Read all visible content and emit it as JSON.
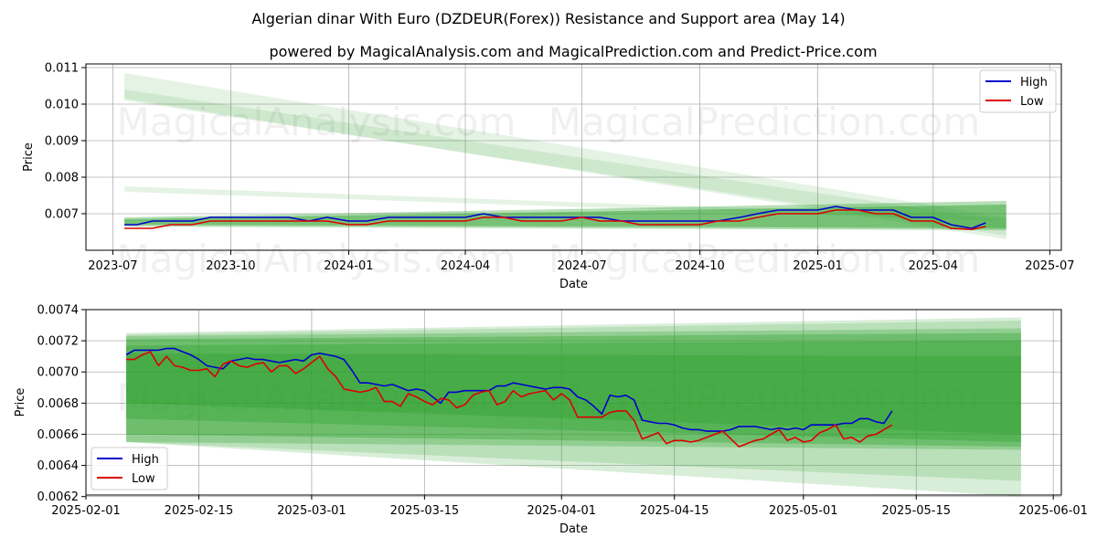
{
  "title": "Algerian dinar With Euro (DZDEUR(Forex)) Resistance and Support area (May 14)",
  "subtitle": "powered by MagicalAnalysis.com and MagicalPrediction.com and Predict-Price.com",
  "watermarks": [
    "MagicalAnalysis.com",
    "MagicalPrediction.com"
  ],
  "colors": {
    "high": "#0000cc",
    "low": "#dd0000",
    "band": "#2ca02c",
    "grid": "#b0b0b0"
  },
  "chart_data": [
    {
      "type": "line",
      "xlabel": "Date",
      "ylabel": "Price",
      "xlim": [
        "2023-06-10",
        "2025-07-10"
      ],
      "ylim": [
        0.006,
        0.0111
      ],
      "x_ticks": [
        "2023-07",
        "2023-10",
        "2024-01",
        "2024-04",
        "2024-07",
        "2024-10",
        "2025-01",
        "2025-04",
        "2025-07"
      ],
      "y_ticks": [
        "0.007",
        "0.008",
        "0.009",
        "0.010",
        "0.011"
      ],
      "grid": true,
      "legend_position": "top-right",
      "series": [
        {
          "name": "High",
          "x": [
            "2023-07-10",
            "2023-07-20",
            "2023-08-01",
            "2023-08-15",
            "2023-09-01",
            "2023-09-15",
            "2023-10-01",
            "2023-10-15",
            "2023-11-01",
            "2023-11-15",
            "2023-12-01",
            "2023-12-15",
            "2024-01-01",
            "2024-01-15",
            "2024-02-01",
            "2024-02-15",
            "2024-03-01",
            "2024-03-15",
            "2024-04-01",
            "2024-04-15",
            "2024-05-01",
            "2024-05-15",
            "2024-06-01",
            "2024-06-15",
            "2024-07-01",
            "2024-07-15",
            "2024-08-01",
            "2024-08-15",
            "2024-09-01",
            "2024-09-15",
            "2024-10-01",
            "2024-10-15",
            "2024-11-01",
            "2024-11-15",
            "2024-12-01",
            "2024-12-15",
            "2025-01-01",
            "2025-01-15",
            "2025-02-01",
            "2025-02-15",
            "2025-03-01",
            "2025-03-15",
            "2025-04-01",
            "2025-04-15",
            "2025-05-01",
            "2025-05-12"
          ],
          "values": [
            0.0067,
            0.0067,
            0.0068,
            0.0068,
            0.0068,
            0.0069,
            0.0069,
            0.0069,
            0.0069,
            0.0069,
            0.0068,
            0.0069,
            0.0068,
            0.0068,
            0.0069,
            0.0069,
            0.0069,
            0.0069,
            0.0069,
            0.007,
            0.0069,
            0.0069,
            0.0069,
            0.0069,
            0.0069,
            0.0069,
            0.0068,
            0.0068,
            0.0068,
            0.0068,
            0.0068,
            0.0068,
            0.0069,
            0.007,
            0.0071,
            0.0071,
            0.0071,
            0.0072,
            0.0071,
            0.0071,
            0.0071,
            0.0069,
            0.0069,
            0.0067,
            0.0066,
            0.00675
          ]
        },
        {
          "name": "Low",
          "x": [
            "2023-07-10",
            "2023-07-20",
            "2023-08-01",
            "2023-08-15",
            "2023-09-01",
            "2023-09-15",
            "2023-10-01",
            "2023-10-15",
            "2023-11-01",
            "2023-11-15",
            "2023-12-01",
            "2023-12-15",
            "2024-01-01",
            "2024-01-15",
            "2024-02-01",
            "2024-02-15",
            "2024-03-01",
            "2024-03-15",
            "2024-04-01",
            "2024-04-15",
            "2024-05-01",
            "2024-05-15",
            "2024-06-01",
            "2024-06-15",
            "2024-07-01",
            "2024-07-15",
            "2024-08-01",
            "2024-08-15",
            "2024-09-01",
            "2024-09-15",
            "2024-10-01",
            "2024-10-15",
            "2024-11-01",
            "2024-11-15",
            "2024-12-01",
            "2024-12-15",
            "2025-01-01",
            "2025-01-15",
            "2025-02-01",
            "2025-02-15",
            "2025-03-01",
            "2025-03-15",
            "2025-04-01",
            "2025-04-15",
            "2025-05-01",
            "2025-05-12"
          ],
          "values": [
            0.0066,
            0.0066,
            0.0066,
            0.0067,
            0.0067,
            0.0068,
            0.0068,
            0.0068,
            0.0068,
            0.0068,
            0.0068,
            0.0068,
            0.0067,
            0.0067,
            0.0068,
            0.0068,
            0.0068,
            0.0068,
            0.0068,
            0.0069,
            0.0069,
            0.0068,
            0.0068,
            0.0068,
            0.0069,
            0.0068,
            0.0068,
            0.0067,
            0.0067,
            0.0067,
            0.0067,
            0.0068,
            0.0068,
            0.0069,
            0.007,
            0.007,
            0.007,
            0.0071,
            0.0071,
            0.007,
            0.007,
            0.0068,
            0.0068,
            0.0066,
            0.00657,
            0.00665
          ]
        }
      ],
      "bands": [
        {
          "x": [
            "2023-07-10",
            "2025-05-28"
          ],
          "upper": [
            0.01085,
            0.0069
          ],
          "lower": [
            0.01015,
            0.0063
          ],
          "opacity": 0.12
        },
        {
          "x": [
            "2023-07-10",
            "2025-05-28"
          ],
          "upper": [
            0.0104,
            0.0068
          ],
          "lower": [
            0.0101,
            0.0064
          ],
          "opacity": 0.12
        },
        {
          "x": [
            "2023-07-10",
            "2025-05-28"
          ],
          "upper": [
            0.00775,
            0.0069
          ],
          "lower": [
            0.0076,
            0.0068
          ],
          "opacity": 0.12
        },
        {
          "x": [
            "2023-07-10",
            "2025-05-28"
          ],
          "upper": [
            0.0069,
            0.00735
          ],
          "lower": [
            0.00665,
            0.00655
          ],
          "opacity": 0.35
        },
        {
          "x": [
            "2023-07-10",
            "2025-05-28"
          ],
          "upper": [
            0.00685,
            0.00725
          ],
          "lower": [
            0.0067,
            0.0066
          ],
          "opacity": 0.45
        }
      ]
    },
    {
      "type": "line",
      "xlabel": "Date",
      "ylabel": "Price",
      "xlim": [
        "2025-02-01",
        "2025-06-02"
      ],
      "ylim": [
        0.00621,
        0.0074
      ],
      "x_ticks": [
        "2025-02-01",
        "2025-02-15",
        "2025-03-01",
        "2025-03-15",
        "2025-04-01",
        "2025-04-15",
        "2025-05-01",
        "2025-05-15",
        "2025-06-01"
      ],
      "y_ticks": [
        "0.0062",
        "0.0064",
        "0.0066",
        "0.0068",
        "0.0070",
        "0.0072",
        "0.0074"
      ],
      "grid": true,
      "legend_position": "bottom-left",
      "series": [
        {
          "name": "High",
          "x": [
            "2025-02-06",
            "2025-02-07",
            "2025-02-08",
            "2025-02-09",
            "2025-02-10",
            "2025-02-11",
            "2025-02-12",
            "2025-02-13",
            "2025-02-14",
            "2025-02-15",
            "2025-02-16",
            "2025-02-17",
            "2025-02-18",
            "2025-02-19",
            "2025-02-20",
            "2025-02-21",
            "2025-02-22",
            "2025-02-23",
            "2025-02-24",
            "2025-02-25",
            "2025-02-26",
            "2025-02-27",
            "2025-02-28",
            "2025-03-01",
            "2025-03-02",
            "2025-03-03",
            "2025-03-04",
            "2025-03-05",
            "2025-03-06",
            "2025-03-07",
            "2025-03-08",
            "2025-03-09",
            "2025-03-10",
            "2025-03-11",
            "2025-03-12",
            "2025-03-13",
            "2025-03-14",
            "2025-03-15",
            "2025-03-16",
            "2025-03-17",
            "2025-03-18",
            "2025-03-19",
            "2025-03-20",
            "2025-03-21",
            "2025-03-22",
            "2025-03-23",
            "2025-03-24",
            "2025-03-25",
            "2025-03-26",
            "2025-03-27",
            "2025-03-28",
            "2025-03-29",
            "2025-03-30",
            "2025-03-31",
            "2025-04-01",
            "2025-04-02",
            "2025-04-03",
            "2025-04-04",
            "2025-04-05",
            "2025-04-06",
            "2025-04-07",
            "2025-04-08",
            "2025-04-09",
            "2025-04-10",
            "2025-04-11",
            "2025-04-12",
            "2025-04-13",
            "2025-04-14",
            "2025-04-15",
            "2025-04-16",
            "2025-04-17",
            "2025-04-18",
            "2025-04-19",
            "2025-04-20",
            "2025-04-21",
            "2025-04-22",
            "2025-04-23",
            "2025-04-24",
            "2025-04-25",
            "2025-04-26",
            "2025-04-27",
            "2025-04-28",
            "2025-04-29",
            "2025-04-30",
            "2025-05-01",
            "2025-05-02",
            "2025-05-03",
            "2025-05-04",
            "2025-05-05",
            "2025-05-06",
            "2025-05-07",
            "2025-05-08",
            "2025-05-09",
            "2025-05-10",
            "2025-05-11",
            "2025-05-12"
          ],
          "values": [
            0.00711,
            0.00714,
            0.00714,
            0.00714,
            0.00714,
            0.00715,
            0.00715,
            0.00713,
            0.00711,
            0.00708,
            0.00704,
            0.00703,
            0.00702,
            0.00707,
            0.00708,
            0.00709,
            0.00708,
            0.00708,
            0.00707,
            0.00706,
            0.00707,
            0.00708,
            0.00707,
            0.00711,
            0.00712,
            0.00711,
            0.0071,
            0.00708,
            0.00701,
            0.00693,
            0.00693,
            0.00692,
            0.00691,
            0.00692,
            0.0069,
            0.00688,
            0.00689,
            0.00688,
            0.00684,
            0.0068,
            0.00687,
            0.00687,
            0.00688,
            0.00688,
            0.00688,
            0.00688,
            0.00691,
            0.00691,
            0.00693,
            0.00692,
            0.00691,
            0.0069,
            0.00689,
            0.0069,
            0.0069,
            0.00689,
            0.00684,
            0.00682,
            0.00678,
            0.00673,
            0.00685,
            0.00684,
            0.00685,
            0.00682,
            0.00669,
            0.00668,
            0.00667,
            0.00667,
            0.00666,
            0.00664,
            0.00663,
            0.00663,
            0.00662,
            0.00662,
            0.00662,
            0.00663,
            0.00665,
            0.00665,
            0.00665,
            0.00664,
            0.00663,
            0.00664,
            0.00663,
            0.00664,
            0.00663,
            0.00666,
            0.00666,
            0.00666,
            0.00666,
            0.00667,
            0.00667,
            0.0067,
            0.0067,
            0.00668,
            0.00667,
            0.00675
          ]
        },
        {
          "name": "Low",
          "x": [
            "2025-02-06",
            "2025-02-07",
            "2025-02-08",
            "2025-02-09",
            "2025-02-10",
            "2025-02-11",
            "2025-02-12",
            "2025-02-13",
            "2025-02-14",
            "2025-02-15",
            "2025-02-16",
            "2025-02-17",
            "2025-02-18",
            "2025-02-19",
            "2025-02-20",
            "2025-02-21",
            "2025-02-22",
            "2025-02-23",
            "2025-02-24",
            "2025-02-25",
            "2025-02-26",
            "2025-02-27",
            "2025-02-28",
            "2025-03-01",
            "2025-03-02",
            "2025-03-03",
            "2025-03-04",
            "2025-03-05",
            "2025-03-06",
            "2025-03-07",
            "2025-03-08",
            "2025-03-09",
            "2025-03-10",
            "2025-03-11",
            "2025-03-12",
            "2025-03-13",
            "2025-03-14",
            "2025-03-15",
            "2025-03-16",
            "2025-03-17",
            "2025-03-18",
            "2025-03-19",
            "2025-03-20",
            "2025-03-21",
            "2025-03-22",
            "2025-03-23",
            "2025-03-24",
            "2025-03-25",
            "2025-03-26",
            "2025-03-27",
            "2025-03-28",
            "2025-03-29",
            "2025-03-30",
            "2025-03-31",
            "2025-04-01",
            "2025-04-02",
            "2025-04-03",
            "2025-04-04",
            "2025-04-05",
            "2025-04-06",
            "2025-04-07",
            "2025-04-08",
            "2025-04-09",
            "2025-04-10",
            "2025-04-11",
            "2025-04-12",
            "2025-04-13",
            "2025-04-14",
            "2025-04-15",
            "2025-04-16",
            "2025-04-17",
            "2025-04-18",
            "2025-04-19",
            "2025-04-20",
            "2025-04-21",
            "2025-04-22",
            "2025-04-23",
            "2025-04-24",
            "2025-04-25",
            "2025-04-26",
            "2025-04-27",
            "2025-04-28",
            "2025-04-29",
            "2025-04-30",
            "2025-05-01",
            "2025-05-02",
            "2025-05-03",
            "2025-05-04",
            "2025-05-05",
            "2025-05-06",
            "2025-05-07",
            "2025-05-08",
            "2025-05-09",
            "2025-05-10",
            "2025-05-11",
            "2025-05-12"
          ],
          "values": [
            0.00708,
            0.00708,
            0.00711,
            0.00713,
            0.00704,
            0.0071,
            0.00704,
            0.00703,
            0.00701,
            0.00701,
            0.00702,
            0.00697,
            0.00705,
            0.00707,
            0.00704,
            0.00703,
            0.00705,
            0.00706,
            0.007,
            0.00704,
            0.00704,
            0.00699,
            0.00702,
            0.00706,
            0.0071,
            0.00702,
            0.00697,
            0.00689,
            0.00688,
            0.00687,
            0.00688,
            0.0069,
            0.00681,
            0.00681,
            0.00678,
            0.00686,
            0.00684,
            0.00681,
            0.00679,
            0.00683,
            0.00682,
            0.00677,
            0.00679,
            0.00685,
            0.00687,
            0.00688,
            0.00679,
            0.00681,
            0.00688,
            0.00684,
            0.00686,
            0.00687,
            0.00688,
            0.00682,
            0.00686,
            0.00682,
            0.00671,
            0.00671,
            0.00671,
            0.00671,
            0.00674,
            0.00675,
            0.00675,
            0.00669,
            0.00657,
            0.00659,
            0.00661,
            0.00654,
            0.00656,
            0.00656,
            0.00655,
            0.00656,
            0.00658,
            0.0066,
            0.00662,
            0.00657,
            0.00652,
            0.00654,
            0.00656,
            0.00657,
            0.0066,
            0.00663,
            0.00656,
            0.00658,
            0.00655,
            0.00656,
            0.00661,
            0.00663,
            0.00666,
            0.00657,
            0.00658,
            0.00655,
            0.00659,
            0.0066,
            0.00663,
            0.00666
          ]
        }
      ],
      "bands": [
        {
          "x": [
            "2025-02-06",
            "2025-05-28"
          ],
          "upper": [
            0.00725,
            0.00735
          ],
          "lower": [
            0.00655,
            0.0062
          ],
          "opacity": 0.18
        },
        {
          "x": [
            "2025-02-06",
            "2025-05-28"
          ],
          "upper": [
            0.00724,
            0.00733
          ],
          "lower": [
            0.00655,
            0.0063
          ],
          "opacity": 0.18
        },
        {
          "x": [
            "2025-02-06",
            "2025-05-28"
          ],
          "upper": [
            0.00723,
            0.00728
          ],
          "lower": [
            0.00655,
            0.0065
          ],
          "opacity": 0.28
        },
        {
          "x": [
            "2025-02-06",
            "2025-05-28"
          ],
          "upper": [
            0.00721,
            0.00725
          ],
          "lower": [
            0.0066,
            0.00652
          ],
          "opacity": 0.35
        },
        {
          "x": [
            "2025-02-06",
            "2025-05-28"
          ],
          "upper": [
            0.00717,
            0.0072
          ],
          "lower": [
            0.0067,
            0.00655
          ],
          "opacity": 0.35
        },
        {
          "x": [
            "2025-02-06",
            "2025-05-28"
          ],
          "upper": [
            0.00712,
            0.0071
          ],
          "lower": [
            0.0068,
            0.0066
          ],
          "opacity": 0.35
        }
      ]
    }
  ]
}
